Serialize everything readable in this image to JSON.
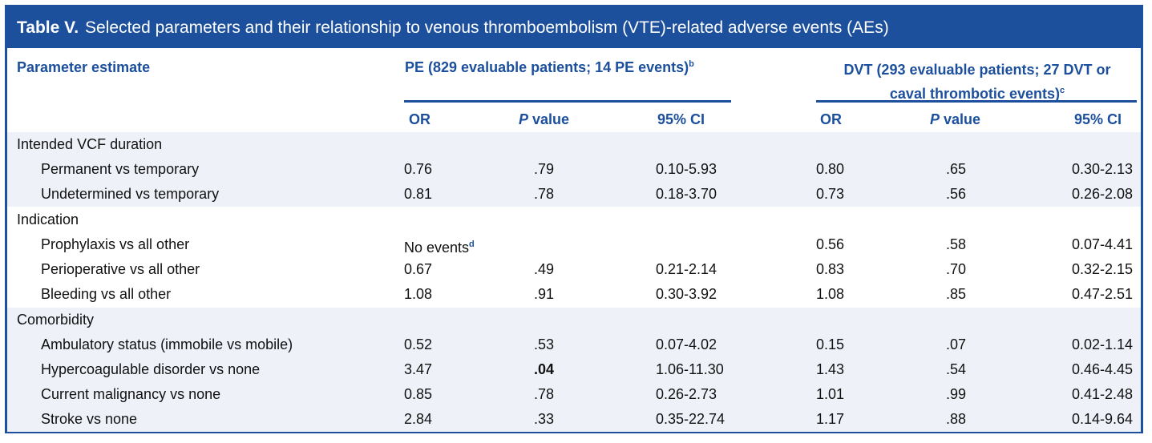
{
  "title": {
    "label": "Table V.",
    "text": "Selected parameters and their relationship to venous thromboembolism (VTE)-related adverse events (AEs)"
  },
  "header": {
    "param": "Parameter estimate",
    "pe_group": "PE (829 evaluable patients; 14 PE events)",
    "pe_sup": "b",
    "dvt_group_line1": "DVT (293 evaluable patients; 27 DVT or",
    "dvt_group_line2": "caval thrombotic events)",
    "dvt_sup": "c",
    "or": "OR",
    "p_italic": "P",
    "p_rest": " value",
    "ci": "95% CI"
  },
  "sections": [
    {
      "name": "Intended VCF duration",
      "rows": [
        {
          "label": "Permanent vs temporary",
          "pe_or": "0.76",
          "pe_p": ".79",
          "pe_ci": "0.10-5.93",
          "dvt_or": "0.80",
          "dvt_p": ".65",
          "dvt_ci": "0.30-2.13"
        },
        {
          "label": "Undetermined vs temporary",
          "pe_or": "0.81",
          "pe_p": ".78",
          "pe_ci": "0.18-3.70",
          "dvt_or": "0.73",
          "dvt_p": ".56",
          "dvt_ci": "0.26-2.08"
        }
      ]
    },
    {
      "name": "Indication",
      "rows": [
        {
          "label": "Prophylaxis vs all other",
          "pe_or": "No events",
          "pe_or_sup": "d",
          "pe_p": "",
          "pe_ci": "",
          "dvt_or": "0.56",
          "dvt_p": ".58",
          "dvt_ci": "0.07-4.41"
        },
        {
          "label": "Perioperative vs all other",
          "pe_or": "0.67",
          "pe_p": ".49",
          "pe_ci": "0.21-2.14",
          "dvt_or": "0.83",
          "dvt_p": ".70",
          "dvt_ci": "0.32-2.15"
        },
        {
          "label": "Bleeding vs all other",
          "pe_or": "1.08",
          "pe_p": ".91",
          "pe_ci": "0.30-3.92",
          "dvt_or": "1.08",
          "dvt_p": ".85",
          "dvt_ci": "0.47-2.51"
        }
      ]
    },
    {
      "name": "Comorbidity",
      "rows": [
        {
          "label": "Ambulatory status (immobile vs mobile)",
          "pe_or": "0.52",
          "pe_p": ".53",
          "pe_ci": "0.07-4.02",
          "dvt_or": "0.15",
          "dvt_p": ".07",
          "dvt_ci": "0.02-1.14"
        },
        {
          "label": "Hypercoagulable disorder vs none",
          "pe_or": "3.47",
          "pe_p": ".04",
          "pe_p_bold": true,
          "pe_ci": "1.06-11.30",
          "dvt_or": "1.43",
          "dvt_p": ".54",
          "dvt_ci": "0.46-4.45"
        },
        {
          "label": "Current malignancy vs none",
          "pe_or": "0.85",
          "pe_p": ".78",
          "pe_ci": "0.26-2.73",
          "dvt_or": "1.01",
          "dvt_p": ".99",
          "dvt_ci": "0.41-2.48"
        },
        {
          "label": "Stroke vs none",
          "pe_or": "2.84",
          "pe_p": ".33",
          "pe_ci": "0.35-22.74",
          "dvt_or": "1.17",
          "dvt_p": ".88",
          "dvt_ci": "0.14-9.64"
        }
      ]
    }
  ],
  "colors": {
    "accent": "#1c4f9c",
    "shade": "#eef2f8"
  }
}
